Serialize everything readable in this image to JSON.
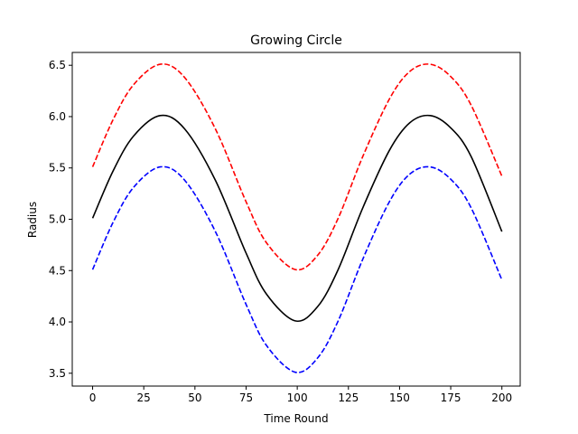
{
  "chart_data": {
    "type": "line",
    "title": "Growing Circle",
    "xlabel": "Time Round",
    "ylabel": "Radius",
    "xlim": [
      -9.95,
      208.95
    ],
    "ylim": [
      3.375,
      6.625
    ],
    "xticks": [
      0,
      25,
      50,
      75,
      100,
      125,
      150,
      175,
      200
    ],
    "yticks": [
      3.5,
      4.0,
      4.5,
      5.0,
      5.5,
      6.0,
      6.5
    ],
    "ytick_labels": [
      "3.5",
      "4.0",
      "4.5",
      "5.0",
      "5.5",
      "6.0",
      "6.5"
    ],
    "grid": false,
    "legend": false,
    "series": [
      {
        "color": "#ff0000",
        "style": "dashed",
        "x": [
          0,
          10,
          20,
          33,
          45,
          60,
          75,
          85,
          99,
          110,
          120,
          132,
          145,
          155,
          165,
          175,
          185,
          200
        ],
        "values": [
          5.51,
          5.97,
          6.31,
          6.51,
          6.38,
          5.88,
          5.17,
          4.77,
          4.51,
          4.65,
          5.01,
          5.61,
          6.17,
          6.44,
          6.51,
          6.39,
          6.11,
          5.42
        ]
      },
      {
        "color": "#000000",
        "style": "solid",
        "x": [
          0,
          10,
          20,
          33,
          45,
          60,
          75,
          85,
          99,
          110,
          120,
          132,
          145,
          155,
          165,
          175,
          185,
          200
        ],
        "values": [
          5.01,
          5.47,
          5.81,
          6.01,
          5.88,
          5.38,
          4.67,
          4.27,
          4.01,
          4.15,
          4.51,
          5.11,
          5.67,
          5.94,
          6.01,
          5.89,
          5.61,
          4.88
        ]
      },
      {
        "color": "#0000ff",
        "style": "dashed",
        "x": [
          0,
          10,
          20,
          33,
          45,
          60,
          75,
          85,
          99,
          110,
          120,
          132,
          145,
          155,
          165,
          175,
          185,
          200
        ],
        "values": [
          4.51,
          4.97,
          5.31,
          5.51,
          5.38,
          4.88,
          4.17,
          3.77,
          3.51,
          3.65,
          4.01,
          4.61,
          5.17,
          5.44,
          5.51,
          5.39,
          5.11,
          4.41
        ]
      }
    ]
  }
}
